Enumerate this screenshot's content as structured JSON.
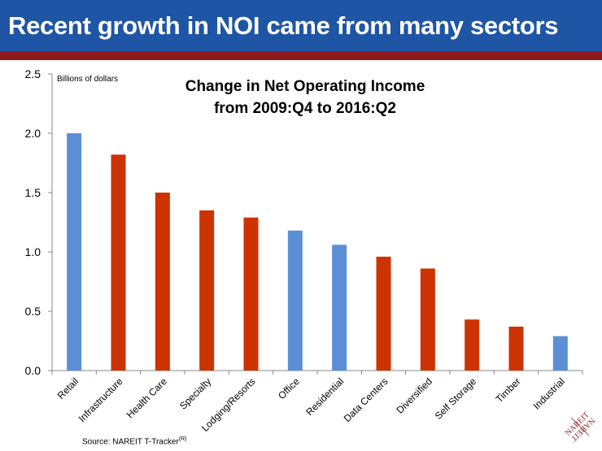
{
  "header": {
    "title": "Recent growth in NOI came from many sectors"
  },
  "colors": {
    "header_bg": "#1f55a5",
    "header_rule": "#8b1a1a",
    "blue_bar": "#5b8fd5",
    "red_bar": "#cc3300"
  },
  "chart_data": {
    "type": "bar",
    "title_line1": "Change in Net Operating Income",
    "title_line2": "from 2009:Q4 to 2016:Q2",
    "ylabel": "Billions of dollars",
    "xlabel": "",
    "ylim": [
      0,
      2.5
    ],
    "yticks": [
      "0.0",
      "0.5",
      "1.0",
      "1.5",
      "2.0",
      "2.5"
    ],
    "ytick_values": [
      0,
      0.5,
      1.0,
      1.5,
      2.0,
      2.5
    ],
    "grid": false,
    "legend": "none",
    "categories": [
      "Retail",
      "Infrastructure",
      "Health Care",
      "Specialty",
      "Lodging/Resorts",
      "Office",
      "Residential",
      "Data Centers",
      "Diversified",
      "Self Storage",
      "Timber",
      "Industrial"
    ],
    "values": [
      2.0,
      1.82,
      1.5,
      1.35,
      1.29,
      1.18,
      1.06,
      0.96,
      0.86,
      0.43,
      0.37,
      0.29
    ],
    "bar_colors": [
      "blue",
      "red",
      "red",
      "red",
      "red",
      "blue",
      "blue",
      "red",
      "red",
      "red",
      "red",
      "blue"
    ]
  },
  "source": {
    "label": "Source:  NAREIT T-Tracker",
    "superscript": "(R)"
  },
  "logo": {
    "text_line1": "NAREIT",
    "text_line2": "NAREIT"
  }
}
